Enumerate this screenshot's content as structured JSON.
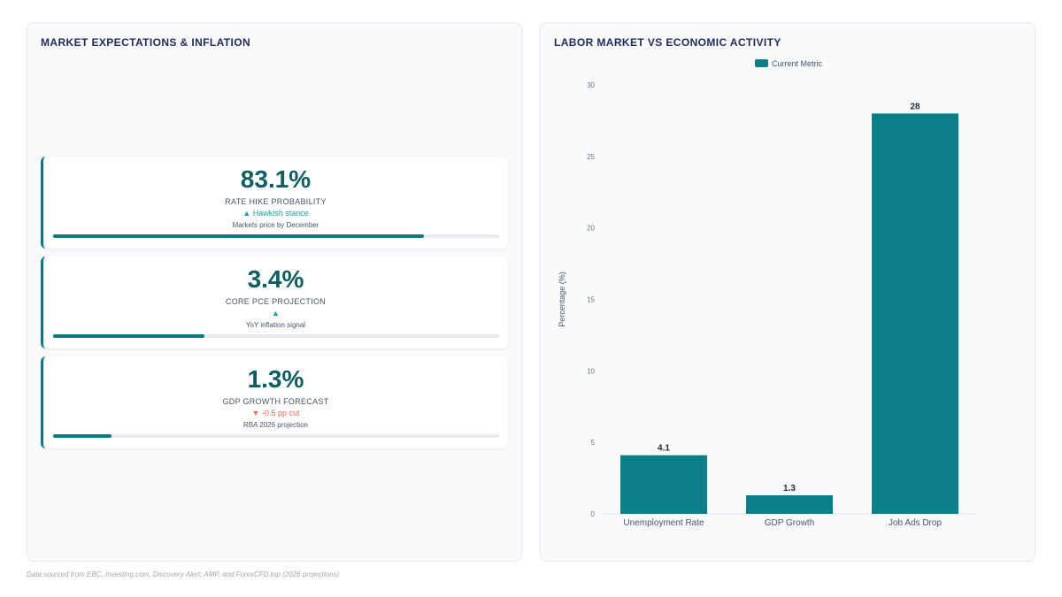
{
  "left_panel": {
    "title": "MARKET EXPECTATIONS & INFLATION",
    "cards": [
      {
        "value": "83.1%",
        "label": "RATE HIKE PROBABILITY",
        "change": "▲ Hawkish stance",
        "direction": "up",
        "note": "Markets price by December",
        "progress": 0.831
      },
      {
        "value": "3.4%",
        "label": "CORE PCE PROJECTION",
        "change": "▲",
        "direction": "up",
        "note": "YoY inflation signal",
        "progress": 0.34
      },
      {
        "value": "1.3%",
        "label": "GDP GROWTH FORECAST",
        "change": "▼ -0.5 pp cut",
        "direction": "down",
        "note": "RBA 2026 projection",
        "progress": 0.13
      }
    ]
  },
  "right_panel": {
    "title": "LABOR MARKET VS ECONOMIC ACTIVITY"
  },
  "chart_data": {
    "type": "bar",
    "title": "LABOR MARKET VS ECONOMIC ACTIVITY",
    "categories": [
      "Unemployment Rate",
      "GDP Growth",
      "Job Ads Drop"
    ],
    "series": [
      {
        "name": "Current Metric",
        "values": [
          4.1,
          1.3,
          28
        ],
        "color": "#0b7f88"
      }
    ],
    "data_labels": [
      "4.1",
      "1.3",
      "28"
    ],
    "xlabel": "",
    "ylabel": "Percentage (%)",
    "ylim": [
      0,
      30
    ],
    "yticks": [
      0,
      5,
      10,
      15,
      20,
      25,
      30
    ],
    "grid": false,
    "legend": "top-center"
  },
  "colors": {
    "accent": "#0b7a80",
    "bar": "#0b7f88",
    "title": "#1e2a5a",
    "positive": "#16a39a",
    "negative": "#e26a5a"
  },
  "footnote": "Data sourced from EBC, Investing.com, Discovery Alert, AMP, and ForexCFD.top (2026 projections)"
}
